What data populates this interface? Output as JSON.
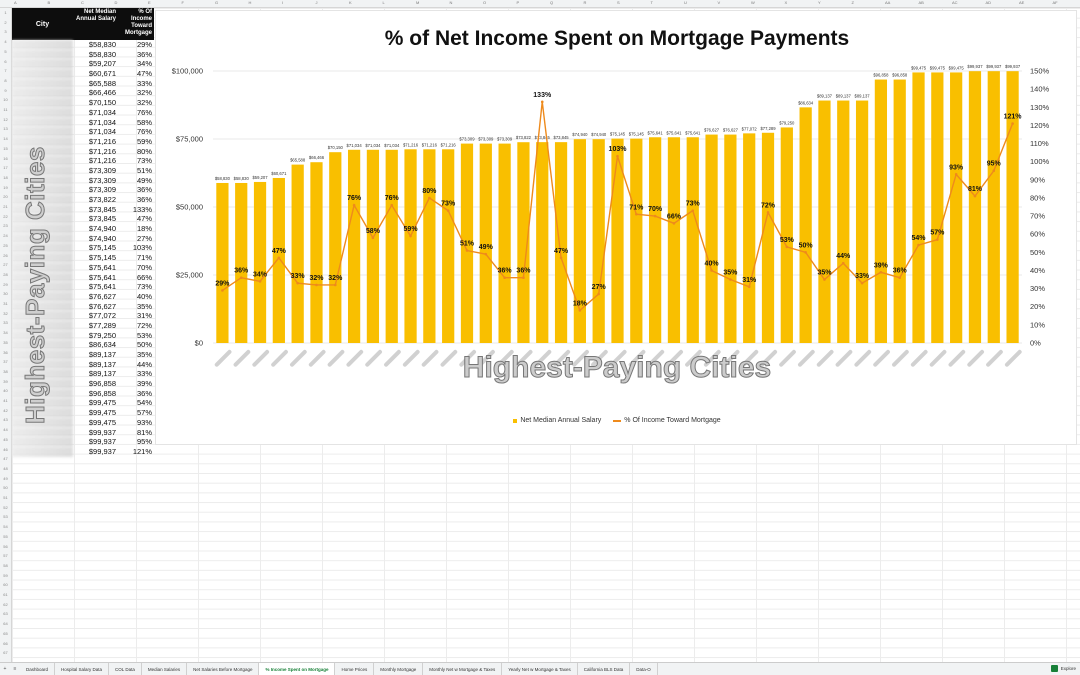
{
  "columns": [
    "A",
    "B",
    "C",
    "D",
    "E",
    "F",
    "G",
    "H",
    "I",
    "J",
    "K",
    "L",
    "M",
    "N",
    "O",
    "P",
    "Q",
    "R",
    "S",
    "T",
    "U",
    "V",
    "W",
    "X",
    "Y",
    "Z",
    "AA",
    "AB",
    "AC",
    "AD",
    "AE",
    "AF"
  ],
  "table": {
    "headers": {
      "city": "City",
      "salary": "Net Median Annual Salary",
      "pct": "% Of Income Toward Mortgage"
    },
    "salaries": [
      "$58,830",
      "$58,830",
      "$59,207",
      "$60,671",
      "$65,588",
      "$66,466",
      "$70,150",
      "$71,034",
      "$71,034",
      "$71,034",
      "$71,216",
      "$71,216",
      "$71,216",
      "$73,309",
      "$73,309",
      "$73,309",
      "$73,822",
      "$73,845",
      "$73,845",
      "$74,940",
      "$74,940",
      "$75,145",
      "$75,145",
      "$75,641",
      "$75,641",
      "$75,641",
      "$76,627",
      "$76,627",
      "$77,072",
      "$77,289",
      "$79,250",
      "$86,634",
      "$89,137",
      "$89,137",
      "$89,137",
      "$96,858",
      "$96,858",
      "$99,475",
      "$99,475",
      "$99,475",
      "$99,937",
      "$99,937",
      "$99,937"
    ],
    "pcts": [
      "29%",
      "36%",
      "34%",
      "47%",
      "33%",
      "32%",
      "32%",
      "76%",
      "58%",
      "76%",
      "59%",
      "80%",
      "73%",
      "51%",
      "49%",
      "36%",
      "36%",
      "133%",
      "47%",
      "18%",
      "27%",
      "103%",
      "71%",
      "70%",
      "66%",
      "73%",
      "40%",
      "35%",
      "31%",
      "72%",
      "53%",
      "50%",
      "35%",
      "44%",
      "33%",
      "39%",
      "36%",
      "54%",
      "57%",
      "93%",
      "81%",
      "95%",
      "121%"
    ]
  },
  "watermark": "Highest-Paying Cities",
  "colors": {
    "bar": "#f9bf00",
    "line": "#ee8a1c"
  },
  "chart_data": {
    "type": "bar",
    "title": "% of Net Income Spent on Mortgage Payments",
    "y_left": {
      "ticks": [
        "$0",
        "$25,000",
        "$50,000",
        "$75,000",
        "$100,000"
      ],
      "range": [
        0,
        100000
      ]
    },
    "y_right": {
      "ticks": [
        "0%",
        "10%",
        "20%",
        "30%",
        "40%",
        "50%",
        "60%",
        "70%",
        "80%",
        "90%",
        "100%",
        "110%",
        "120%",
        "130%",
        "140%",
        "150%"
      ],
      "range": [
        0,
        150
      ]
    },
    "series": [
      {
        "name": "Net Median Annual Salary",
        "type": "bar",
        "values": [
          58830,
          58830,
          59207,
          60671,
          65588,
          66466,
          70150,
          71034,
          71034,
          71034,
          71216,
          71216,
          71216,
          73309,
          73309,
          73309,
          73822,
          73845,
          73845,
          74940,
          74940,
          75145,
          75145,
          75641,
          75641,
          75641,
          76627,
          76627,
          77072,
          77289,
          79250,
          86634,
          89137,
          89137,
          89137,
          96858,
          96858,
          99475,
          99475,
          99475,
          99937,
          99937,
          99937
        ],
        "labels": [
          "$58,830",
          "$58,830",
          "$59,207",
          "$60,671",
          "$65,588",
          "$66,466",
          "$70,150",
          "$71,034",
          "$71,034",
          "$71,034",
          "$71,216",
          "$71,216",
          "$71,216",
          "$73,309",
          "$73,309",
          "$73,309",
          "$73,822",
          "$73,845",
          "$73,845",
          "$74,940",
          "$74,940",
          "$75,145",
          "$75,145",
          "$75,641",
          "$75,641",
          "$75,641",
          "$76,627",
          "$76,627",
          "$77,072",
          "$77,289",
          "$79,250",
          "$86,634",
          "$89,137",
          "$89,137",
          "$89,137",
          "$96,858",
          "$96,858",
          "$99,475",
          "$99,475",
          "$99,475",
          "$99,937",
          "$99,937",
          "$99,937"
        ]
      },
      {
        "name": "% Of Income  Toward Mortgage",
        "type": "line",
        "values": [
          29,
          36,
          34,
          47,
          33,
          32,
          32,
          76,
          58,
          76,
          59,
          80,
          73,
          51,
          49,
          36,
          36,
          133,
          47,
          18,
          27,
          103,
          71,
          70,
          66,
          73,
          40,
          35,
          31,
          72,
          53,
          50,
          35,
          44,
          33,
          39,
          36,
          54,
          57,
          93,
          81,
          95,
          121
        ],
        "labels": [
          "29%",
          "36%",
          "34%",
          "47%",
          "33%",
          "32%",
          "32%",
          "76%",
          "58%",
          "76%",
          "59%",
          "80%",
          "73%",
          "51%",
          "49%",
          "36%",
          "36%",
          "133%",
          "47%",
          "18%",
          "27%",
          "103%",
          "71%",
          "70%",
          "66%",
          "73%",
          "40%",
          "35%",
          "31%",
          "72%",
          "53%",
          "50%",
          "35%",
          "44%",
          "33%",
          "39%",
          "36%",
          "54%",
          "57%",
          "93%",
          "81%",
          "95%",
          "121%"
        ]
      }
    ],
    "legend_position": "bottom",
    "grid": true
  },
  "tabs": [
    "Dashboard",
    "Hospital Salary Data",
    "COL Data",
    "Median Salaries",
    "Net Salaries Before Mortgage",
    "% Income Spent on Mortgage",
    "Home Prices",
    "Monthly Mortgage",
    "Monthly Net w Mortgage & Taxes",
    "Yearly Net w Mortgage & Taxes",
    "California BLS Data",
    "Data-O"
  ],
  "active_tab": "% Income Spent on Mortgage",
  "explore_label": "Explore"
}
